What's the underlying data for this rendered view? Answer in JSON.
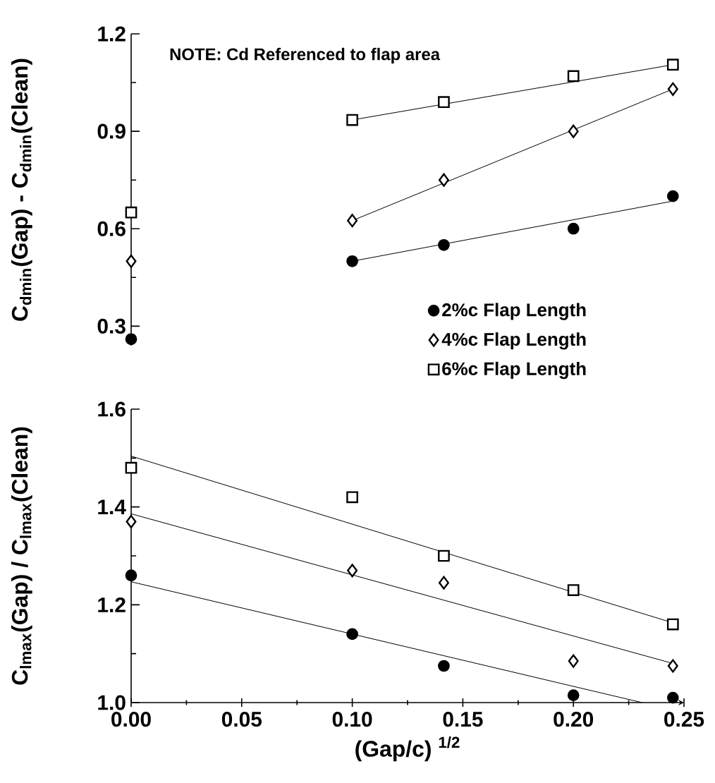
{
  "chart_data": [
    {
      "type": "scatter",
      "ylabel": "C$_{dmin}$(Gap) - C$_{dmin}$(Clean)",
      "annotations": [
        "NOTE: Cd Referenced to flap area"
      ],
      "xlim": [
        0,
        0.25
      ],
      "ylim": [
        0.24,
        1.2
      ],
      "yticks": [
        0.3,
        0.6,
        0.9,
        1.2
      ],
      "tick_labels": "y",
      "legend": "bottom right",
      "series": [
        {
          "name": "2%c Flap Length",
          "marker": "circle",
          "color": "#000000",
          "x": [
            0,
            0.1,
            0.1414,
            0.2,
            0.245
          ],
          "values": [
            0.26,
            0.5,
            0.55,
            0.6,
            0.7
          ]
        },
        {
          "name": "4%c Flap Length",
          "marker": "diamond",
          "color": "#000000",
          "x": [
            0,
            0.1,
            0.1414,
            0.2,
            0.245
          ],
          "values": [
            0.5,
            0.625,
            0.75,
            0.9,
            1.03
          ]
        },
        {
          "name": "6%c Flap Length",
          "marker": "square",
          "color": "#000000",
          "x": [
            0,
            0.1,
            0.1414,
            0.2,
            0.245
          ],
          "values": [
            0.65,
            0.935,
            0.99,
            1.07,
            1.105
          ]
        },
        {
          "type": "line",
          "marker": "none",
          "color": "#000000",
          "x": [
            0.1,
            0.245
          ],
          "values": [
            0.5,
            0.685
          ]
        },
        {
          "type": "line",
          "marker": "none",
          "color": "#000000",
          "x": [
            0.1,
            0.245
          ],
          "values": [
            0.625,
            1.03
          ]
        },
        {
          "type": "line",
          "marker": "none",
          "color": "#000000",
          "x": [
            0.1,
            0.245
          ],
          "values": [
            0.935,
            1.105
          ]
        }
      ]
    },
    {
      "type": "scatter",
      "xlabel": "(Gap/c) $^{1/2}$",
      "ylabel": "C$_{lmax}$(Gap) / C$_{lmax}$(Clean)",
      "xlim": [
        0,
        0.25
      ],
      "ylim": [
        1.0,
        1.6
      ],
      "xticks": [
        {
          "value": 0,
          "label": "0.00"
        },
        {
          "value": 0.05,
          "label": "0.05"
        },
        {
          "value": 0.1,
          "label": "0.10"
        },
        {
          "value": 0.15,
          "label": "0.15"
        },
        {
          "value": 0.2,
          "label": "0.20"
        },
        {
          "value": 0.25,
          "label": "0.25"
        }
      ],
      "yticks": [
        {
          "value": 1.0,
          "label": "1.0"
        },
        1.2,
        1.4,
        1.6
      ],
      "series": [
        {
          "marker": "circle",
          "color": "#000000",
          "x": [
            0,
            0.1,
            0.1414,
            0.2,
            0.245
          ],
          "values": [
            1.26,
            1.14,
            1.075,
            1.015,
            1.01
          ]
        },
        {
          "marker": "diamond",
          "color": "#000000",
          "x": [
            0,
            0.1,
            0.1414,
            0.2,
            0.245
          ],
          "values": [
            1.37,
            1.27,
            1.245,
            1.085,
            1.075
          ]
        },
        {
          "marker": "square",
          "color": "#000000",
          "x": [
            0,
            0.1,
            0.1414,
            0.2,
            0.245
          ],
          "values": [
            1.48,
            1.42,
            1.3,
            1.23,
            1.16
          ]
        },
        {
          "type": "line",
          "marker": "none",
          "color": "#000000",
          "x": [
            0,
            0.231
          ],
          "values": [
            1.247,
            1.0
          ]
        },
        {
          "type": "line",
          "marker": "none",
          "color": "#000000",
          "x": [
            0,
            0.245
          ],
          "values": [
            1.386,
            1.08
          ]
        },
        {
          "type": "line",
          "marker": "none",
          "color": "#000000",
          "x": [
            0,
            0.245
          ],
          "values": [
            1.504,
            1.163
          ]
        }
      ]
    }
  ]
}
